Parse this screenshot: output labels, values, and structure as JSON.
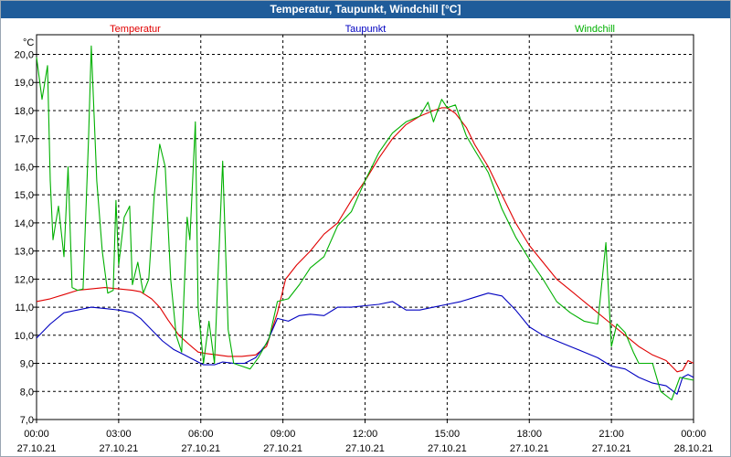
{
  "chart_data": {
    "type": "line",
    "title": "Temperatur, Taupunkt, Windchill [°C]",
    "ylabel": "°C",
    "ylim": [
      7.0,
      20.7
    ],
    "yticks": [
      "7,0",
      "8,0",
      "9,0",
      "10,0",
      "11,0",
      "12,0",
      "13,0",
      "14,0",
      "15,0",
      "16,0",
      "17,0",
      "18,0",
      "19,0",
      "20,0"
    ],
    "xlim": [
      0,
      24
    ],
    "xticks": [
      {
        "time": "00:00",
        "date": "27.10.21"
      },
      {
        "time": "03:00",
        "date": "27.10.21"
      },
      {
        "time": "06:00",
        "date": "27.10.21"
      },
      {
        "time": "09:00",
        "date": "27.10.21"
      },
      {
        "time": "12:00",
        "date": "27.10.21"
      },
      {
        "time": "15:00",
        "date": "27.10.21"
      },
      {
        "time": "18:00",
        "date": "27.10.21"
      },
      {
        "time": "21:00",
        "date": "27.10.21"
      },
      {
        "time": "00:00",
        "date": "28.10.21"
      }
    ],
    "grid": true,
    "series": [
      {
        "name": "Temperatur",
        "color": "#e00000",
        "points": [
          [
            0,
            11.2
          ],
          [
            0.5,
            11.3
          ],
          [
            1,
            11.45
          ],
          [
            1.5,
            11.6
          ],
          [
            2,
            11.65
          ],
          [
            2.5,
            11.7
          ],
          [
            3,
            11.65
          ],
          [
            3.5,
            11.6
          ],
          [
            3.8,
            11.55
          ],
          [
            4.2,
            11.3
          ],
          [
            4.5,
            11.0
          ],
          [
            4.8,
            10.55
          ],
          [
            5.2,
            10.0
          ],
          [
            5.6,
            9.65
          ],
          [
            5.9,
            9.4
          ],
          [
            6.2,
            9.35
          ],
          [
            6.6,
            9.3
          ],
          [
            7.0,
            9.25
          ],
          [
            7.5,
            9.25
          ],
          [
            8.0,
            9.3
          ],
          [
            8.4,
            9.6
          ],
          [
            8.8,
            10.8
          ],
          [
            9.1,
            12.0
          ],
          [
            9.5,
            12.5
          ],
          [
            10,
            13.0
          ],
          [
            10.5,
            13.6
          ],
          [
            11,
            14.0
          ],
          [
            11.5,
            14.8
          ],
          [
            12,
            15.5
          ],
          [
            12.5,
            16.3
          ],
          [
            13,
            17.0
          ],
          [
            13.5,
            17.5
          ],
          [
            14,
            17.8
          ],
          [
            14.5,
            18.0
          ],
          [
            14.8,
            18.1
          ],
          [
            15.0,
            18.1
          ],
          [
            15.3,
            17.9
          ],
          [
            15.7,
            17.4
          ],
          [
            16,
            16.8
          ],
          [
            16.5,
            16.0
          ],
          [
            17,
            15.0
          ],
          [
            17.5,
            14.0
          ],
          [
            18,
            13.2
          ],
          [
            18.5,
            12.6
          ],
          [
            19,
            12.0
          ],
          [
            19.5,
            11.6
          ],
          [
            20,
            11.2
          ],
          [
            20.5,
            10.8
          ],
          [
            21,
            10.4
          ],
          [
            21.5,
            10.0
          ],
          [
            22,
            9.6
          ],
          [
            22.5,
            9.3
          ],
          [
            23,
            9.1
          ],
          [
            23.4,
            8.7
          ],
          [
            23.6,
            8.75
          ],
          [
            23.8,
            9.1
          ],
          [
            24,
            9.0
          ]
        ]
      },
      {
        "name": "Taupunkt",
        "color": "#0000c0",
        "points": [
          [
            0,
            9.9
          ],
          [
            0.5,
            10.4
          ],
          [
            1,
            10.8
          ],
          [
            1.5,
            10.9
          ],
          [
            2,
            11.0
          ],
          [
            2.5,
            10.95
          ],
          [
            3,
            10.9
          ],
          [
            3.5,
            10.8
          ],
          [
            3.8,
            10.6
          ],
          [
            4.2,
            10.2
          ],
          [
            4.6,
            9.8
          ],
          [
            5.0,
            9.5
          ],
          [
            5.4,
            9.3
          ],
          [
            5.8,
            9.1
          ],
          [
            6.1,
            8.95
          ],
          [
            6.5,
            8.95
          ],
          [
            6.8,
            9.05
          ],
          [
            7.2,
            9.0
          ],
          [
            7.6,
            9.0
          ],
          [
            8.0,
            9.2
          ],
          [
            8.4,
            9.7
          ],
          [
            8.8,
            10.6
          ],
          [
            9.2,
            10.5
          ],
          [
            9.6,
            10.7
          ],
          [
            10,
            10.75
          ],
          [
            10.5,
            10.7
          ],
          [
            11,
            11.0
          ],
          [
            11.5,
            11.0
          ],
          [
            12,
            11.05
          ],
          [
            12.5,
            11.1
          ],
          [
            13,
            11.2
          ],
          [
            13.5,
            10.9
          ],
          [
            14,
            10.9
          ],
          [
            14.5,
            11.0
          ],
          [
            15,
            11.1
          ],
          [
            15.5,
            11.2
          ],
          [
            16,
            11.35
          ],
          [
            16.5,
            11.5
          ],
          [
            17,
            11.4
          ],
          [
            17.5,
            10.9
          ],
          [
            18,
            10.3
          ],
          [
            18.5,
            10.0
          ],
          [
            19,
            9.8
          ],
          [
            19.5,
            9.6
          ],
          [
            20,
            9.4
          ],
          [
            20.5,
            9.2
          ],
          [
            21,
            8.9
          ],
          [
            21.5,
            8.8
          ],
          [
            22,
            8.5
          ],
          [
            22.5,
            8.3
          ],
          [
            23,
            8.2
          ],
          [
            23.4,
            7.9
          ],
          [
            23.6,
            8.5
          ],
          [
            23.8,
            8.6
          ],
          [
            24,
            8.5
          ]
        ]
      },
      {
        "name": "Windchill",
        "color": "#00b000",
        "points": [
          [
            0,
            19.9
          ],
          [
            0.2,
            18.4
          ],
          [
            0.4,
            19.6
          ],
          [
            0.5,
            15.5
          ],
          [
            0.6,
            13.4
          ],
          [
            0.8,
            14.6
          ],
          [
            1.0,
            12.8
          ],
          [
            1.15,
            16.0
          ],
          [
            1.3,
            11.7
          ],
          [
            1.5,
            11.6
          ],
          [
            1.7,
            11.65
          ],
          [
            1.9,
            17.0
          ],
          [
            2.0,
            20.3
          ],
          [
            2.2,
            15.5
          ],
          [
            2.4,
            13.0
          ],
          [
            2.6,
            11.5
          ],
          [
            2.8,
            11.6
          ],
          [
            2.9,
            14.8
          ],
          [
            3.0,
            12.5
          ],
          [
            3.2,
            14.2
          ],
          [
            3.4,
            14.6
          ],
          [
            3.5,
            11.8
          ],
          [
            3.7,
            12.6
          ],
          [
            3.9,
            11.5
          ],
          [
            4.1,
            12.0
          ],
          [
            4.3,
            15.0
          ],
          [
            4.5,
            16.8
          ],
          [
            4.7,
            16.0
          ],
          [
            4.9,
            12.0
          ],
          [
            5.1,
            10.0
          ],
          [
            5.3,
            9.4
          ],
          [
            5.5,
            14.2
          ],
          [
            5.6,
            13.4
          ],
          [
            5.8,
            17.6
          ],
          [
            5.9,
            11.0
          ],
          [
            6.1,
            9.0
          ],
          [
            6.3,
            10.5
          ],
          [
            6.5,
            9.0
          ],
          [
            6.8,
            16.2
          ],
          [
            7.0,
            10.2
          ],
          [
            7.2,
            9.0
          ],
          [
            7.5,
            8.9
          ],
          [
            7.8,
            8.8
          ],
          [
            8.1,
            9.2
          ],
          [
            8.5,
            9.9
          ],
          [
            8.8,
            11.2
          ],
          [
            9.2,
            11.3
          ],
          [
            9.6,
            11.8
          ],
          [
            10,
            12.4
          ],
          [
            10.5,
            12.8
          ],
          [
            11,
            13.9
          ],
          [
            11.5,
            14.4
          ],
          [
            12,
            15.5
          ],
          [
            12.5,
            16.5
          ],
          [
            13,
            17.2
          ],
          [
            13.5,
            17.6
          ],
          [
            14,
            17.8
          ],
          [
            14.3,
            18.3
          ],
          [
            14.5,
            17.6
          ],
          [
            14.8,
            18.4
          ],
          [
            15.0,
            18.1
          ],
          [
            15.3,
            18.2
          ],
          [
            15.7,
            17.1
          ],
          [
            16,
            16.6
          ],
          [
            16.5,
            15.8
          ],
          [
            17,
            14.5
          ],
          [
            17.5,
            13.5
          ],
          [
            18,
            12.7
          ],
          [
            18.5,
            12.0
          ],
          [
            19,
            11.2
          ],
          [
            19.5,
            10.8
          ],
          [
            20,
            10.5
          ],
          [
            20.5,
            10.4
          ],
          [
            20.8,
            13.3
          ],
          [
            21.0,
            9.6
          ],
          [
            21.2,
            10.4
          ],
          [
            21.5,
            10.1
          ],
          [
            21.8,
            9.4
          ],
          [
            22.0,
            9.0
          ],
          [
            22.5,
            9.0
          ],
          [
            22.8,
            8.0
          ],
          [
            23.2,
            7.7
          ],
          [
            23.5,
            8.5
          ],
          [
            24,
            8.4
          ]
        ]
      }
    ]
  }
}
